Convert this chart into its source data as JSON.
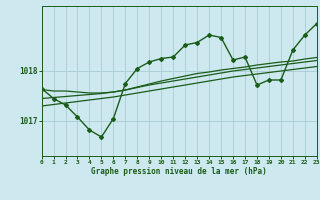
{
  "bg_color": "#cde8ee",
  "grid_color": "#aaccd4",
  "line_color": "#1a5c1a",
  "xlabel": "Graphe pression niveau de la mer (hPa)",
  "hours": [
    0,
    1,
    2,
    3,
    4,
    5,
    6,
    7,
    8,
    9,
    10,
    11,
    12,
    13,
    14,
    15,
    16,
    17,
    18,
    19,
    20,
    21,
    22,
    23
  ],
  "main_line": [
    1017.65,
    1017.45,
    1017.32,
    1017.08,
    1016.82,
    1016.68,
    1017.05,
    1017.75,
    1018.05,
    1018.18,
    1018.25,
    1018.28,
    1018.52,
    1018.57,
    1018.72,
    1018.67,
    1018.22,
    1018.28,
    1017.72,
    1017.82,
    1017.82,
    1018.42,
    1018.72,
    1018.95
  ],
  "smooth_line1": [
    1017.63,
    1017.6,
    1017.6,
    1017.58,
    1017.56,
    1017.56,
    1017.58,
    1017.62,
    1017.68,
    1017.74,
    1017.8,
    1017.85,
    1017.9,
    1017.95,
    1017.98,
    1018.02,
    1018.05,
    1018.08,
    1018.12,
    1018.15,
    1018.18,
    1018.2,
    1018.24,
    1018.27
  ],
  "smooth_line2": [
    1017.45,
    1017.47,
    1017.49,
    1017.51,
    1017.53,
    1017.55,
    1017.58,
    1017.62,
    1017.67,
    1017.72,
    1017.76,
    1017.8,
    1017.84,
    1017.88,
    1017.92,
    1017.96,
    1018.0,
    1018.03,
    1018.06,
    1018.09,
    1018.12,
    1018.15,
    1018.18,
    1018.21
  ],
  "smooth_line3": [
    1017.3,
    1017.33,
    1017.36,
    1017.39,
    1017.42,
    1017.45,
    1017.48,
    1017.52,
    1017.56,
    1017.6,
    1017.64,
    1017.68,
    1017.72,
    1017.76,
    1017.8,
    1017.84,
    1017.88,
    1017.91,
    1017.94,
    1017.97,
    1018.0,
    1018.03,
    1018.06,
    1018.09
  ],
  "yticks": [
    1017,
    1018
  ],
  "ylim": [
    1016.3,
    1019.3
  ],
  "xlim": [
    0,
    23
  ],
  "figw": 3.2,
  "figh": 2.0,
  "dpi": 100
}
